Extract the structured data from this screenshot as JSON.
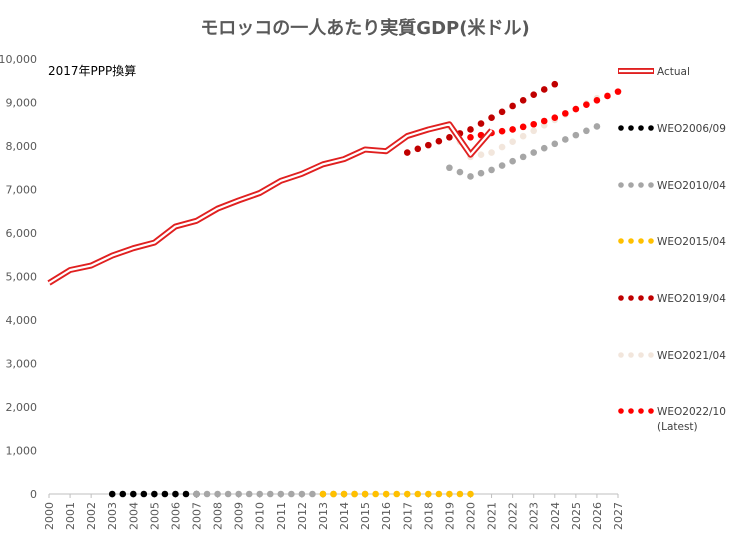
{
  "chart_data": {
    "type": "line",
    "title": "モロッコの一人あたり実質GDP(米ドル)",
    "annotation": "2017年PPP換算",
    "xlabel": "",
    "ylabel": "",
    "x_range": [
      2000,
      2027
    ],
    "ylim": [
      0,
      10000
    ],
    "y_ticks": [
      0,
      1000,
      2000,
      3000,
      4000,
      5000,
      6000,
      7000,
      8000,
      9000,
      10000
    ],
    "y_tick_labels": [
      "0",
      "1,000",
      "2,000",
      "3,000",
      "4,000",
      "5,000",
      "6,000",
      "7,000",
      "8,000",
      "9,000",
      "10,000"
    ],
    "x_tick_labels": [
      "2000",
      "2001",
      "2002",
      "2003",
      "2004",
      "2005",
      "2006",
      "2007",
      "2008",
      "2009",
      "2010",
      "2011",
      "2012",
      "2013",
      "2014",
      "2015",
      "2016",
      "2017",
      "2018",
      "2019",
      "2020",
      "2021",
      "2022",
      "2023",
      "2024",
      "2025",
      "2026",
      "2027"
    ],
    "grid": false,
    "legend_position": "right",
    "series": [
      {
        "name": "Actual",
        "style": "double-line",
        "color": "#e02020",
        "x": [
          2000,
          2001,
          2002,
          2003,
          2004,
          2005,
          2006,
          2007,
          2008,
          2009,
          2010,
          2011,
          2012,
          2013,
          2014,
          2015,
          2016,
          2017,
          2018,
          2019,
          2020,
          2021
        ],
        "values": [
          4850,
          5150,
          5250,
          5480,
          5650,
          5780,
          6150,
          6280,
          6560,
          6750,
          6920,
          7200,
          7360,
          7580,
          7700,
          7920,
          7880,
          8230,
          8380,
          8500,
          7800,
          8360
        ]
      },
      {
        "name": "WEO2006/09",
        "style": "dots",
        "color": "#000000",
        "x": [
          2003,
          2004,
          2005,
          2006,
          2007
        ],
        "values": [
          0,
          0,
          0,
          0,
          0
        ]
      },
      {
        "name": "WEO2010/04",
        "style": "dots",
        "color": "#a6a6a6",
        "x": [
          2007,
          2008,
          2009,
          2010,
          2011,
          2012,
          2013,
          2014,
          2015,
          2019,
          2020,
          2021,
          2022,
          2023,
          2024,
          2025,
          2026
        ],
        "values": [
          0,
          0,
          0,
          0,
          0,
          0,
          0,
          0,
          0,
          7500,
          7300,
          7450,
          7650,
          7850,
          8050,
          8250,
          8450
        ]
      },
      {
        "name": "WEO2015/04",
        "style": "dots",
        "color": "#ffc000",
        "x": [
          2013,
          2014,
          2015,
          2016,
          2017,
          2018,
          2019,
          2020
        ],
        "values": [
          0,
          0,
          0,
          0,
          0,
          0,
          0,
          0
        ]
      },
      {
        "name": "WEO2019/04",
        "style": "dots",
        "color": "#c00000",
        "x": [
          2017,
          2018,
          2019,
          2020,
          2021,
          2022,
          2023,
          2024
        ],
        "values": [
          7850,
          8020,
          8200,
          8380,
          8650,
          8920,
          9180,
          9420
        ]
      },
      {
        "name": "WEO2021/04",
        "style": "dots",
        "color": "#f2e6dc",
        "x": [
          2019,
          2020,
          2021,
          2022,
          2023,
          2024,
          2025,
          2026
        ],
        "values": [
          8450,
          7750,
          7850,
          8100,
          8350,
          8600,
          8850,
          9100
        ]
      },
      {
        "name": "WEO2022/10",
        "name_line2": "(Latest)",
        "style": "dots",
        "color": "#ff0000",
        "x": [
          2020,
          2021,
          2022,
          2023,
          2024,
          2025,
          2026,
          2027
        ],
        "values": [
          8200,
          8300,
          8380,
          8500,
          8650,
          8850,
          9050,
          9250
        ]
      }
    ]
  }
}
